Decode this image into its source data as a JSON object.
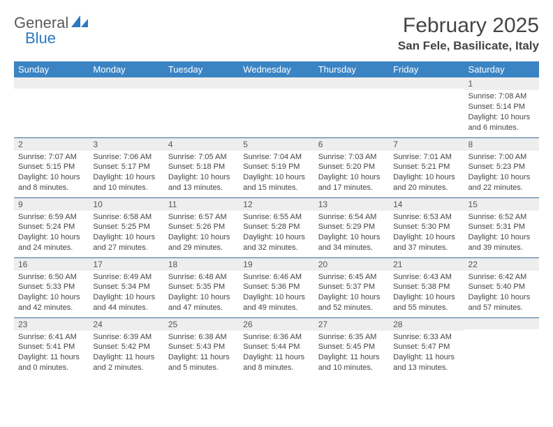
{
  "logo": {
    "text1": "General",
    "text2": "Blue"
  },
  "title": "February 2025",
  "location": "San Fele, Basilicate, Italy",
  "colors": {
    "header_bg": "#3b84c4",
    "header_text": "#ffffff",
    "daynum_bg": "#eeeeee",
    "row_border": "#3b6a9a",
    "logo_blue": "#2b79c2",
    "body_text": "#4a4a4a"
  },
  "fonts": {
    "title_size": 30,
    "location_size": 17,
    "weekday_size": 13,
    "daynum_size": 12,
    "body_size": 11
  },
  "weekdays": [
    "Sunday",
    "Monday",
    "Tuesday",
    "Wednesday",
    "Thursday",
    "Friday",
    "Saturday"
  ],
  "weeks": [
    [
      {
        "num": "",
        "sunrise": "",
        "sunset": "",
        "daylight": ""
      },
      {
        "num": "",
        "sunrise": "",
        "sunset": "",
        "daylight": ""
      },
      {
        "num": "",
        "sunrise": "",
        "sunset": "",
        "daylight": ""
      },
      {
        "num": "",
        "sunrise": "",
        "sunset": "",
        "daylight": ""
      },
      {
        "num": "",
        "sunrise": "",
        "sunset": "",
        "daylight": ""
      },
      {
        "num": "",
        "sunrise": "",
        "sunset": "",
        "daylight": ""
      },
      {
        "num": "1",
        "sunrise": "Sunrise: 7:08 AM",
        "sunset": "Sunset: 5:14 PM",
        "daylight": "Daylight: 10 hours and 6 minutes."
      }
    ],
    [
      {
        "num": "2",
        "sunrise": "Sunrise: 7:07 AM",
        "sunset": "Sunset: 5:15 PM",
        "daylight": "Daylight: 10 hours and 8 minutes."
      },
      {
        "num": "3",
        "sunrise": "Sunrise: 7:06 AM",
        "sunset": "Sunset: 5:17 PM",
        "daylight": "Daylight: 10 hours and 10 minutes."
      },
      {
        "num": "4",
        "sunrise": "Sunrise: 7:05 AM",
        "sunset": "Sunset: 5:18 PM",
        "daylight": "Daylight: 10 hours and 13 minutes."
      },
      {
        "num": "5",
        "sunrise": "Sunrise: 7:04 AM",
        "sunset": "Sunset: 5:19 PM",
        "daylight": "Daylight: 10 hours and 15 minutes."
      },
      {
        "num": "6",
        "sunrise": "Sunrise: 7:03 AM",
        "sunset": "Sunset: 5:20 PM",
        "daylight": "Daylight: 10 hours and 17 minutes."
      },
      {
        "num": "7",
        "sunrise": "Sunrise: 7:01 AM",
        "sunset": "Sunset: 5:21 PM",
        "daylight": "Daylight: 10 hours and 20 minutes."
      },
      {
        "num": "8",
        "sunrise": "Sunrise: 7:00 AM",
        "sunset": "Sunset: 5:23 PM",
        "daylight": "Daylight: 10 hours and 22 minutes."
      }
    ],
    [
      {
        "num": "9",
        "sunrise": "Sunrise: 6:59 AM",
        "sunset": "Sunset: 5:24 PM",
        "daylight": "Daylight: 10 hours and 24 minutes."
      },
      {
        "num": "10",
        "sunrise": "Sunrise: 6:58 AM",
        "sunset": "Sunset: 5:25 PM",
        "daylight": "Daylight: 10 hours and 27 minutes."
      },
      {
        "num": "11",
        "sunrise": "Sunrise: 6:57 AM",
        "sunset": "Sunset: 5:26 PM",
        "daylight": "Daylight: 10 hours and 29 minutes."
      },
      {
        "num": "12",
        "sunrise": "Sunrise: 6:55 AM",
        "sunset": "Sunset: 5:28 PM",
        "daylight": "Daylight: 10 hours and 32 minutes."
      },
      {
        "num": "13",
        "sunrise": "Sunrise: 6:54 AM",
        "sunset": "Sunset: 5:29 PM",
        "daylight": "Daylight: 10 hours and 34 minutes."
      },
      {
        "num": "14",
        "sunrise": "Sunrise: 6:53 AM",
        "sunset": "Sunset: 5:30 PM",
        "daylight": "Daylight: 10 hours and 37 minutes."
      },
      {
        "num": "15",
        "sunrise": "Sunrise: 6:52 AM",
        "sunset": "Sunset: 5:31 PM",
        "daylight": "Daylight: 10 hours and 39 minutes."
      }
    ],
    [
      {
        "num": "16",
        "sunrise": "Sunrise: 6:50 AM",
        "sunset": "Sunset: 5:33 PM",
        "daylight": "Daylight: 10 hours and 42 minutes."
      },
      {
        "num": "17",
        "sunrise": "Sunrise: 6:49 AM",
        "sunset": "Sunset: 5:34 PM",
        "daylight": "Daylight: 10 hours and 44 minutes."
      },
      {
        "num": "18",
        "sunrise": "Sunrise: 6:48 AM",
        "sunset": "Sunset: 5:35 PM",
        "daylight": "Daylight: 10 hours and 47 minutes."
      },
      {
        "num": "19",
        "sunrise": "Sunrise: 6:46 AM",
        "sunset": "Sunset: 5:36 PM",
        "daylight": "Daylight: 10 hours and 49 minutes."
      },
      {
        "num": "20",
        "sunrise": "Sunrise: 6:45 AM",
        "sunset": "Sunset: 5:37 PM",
        "daylight": "Daylight: 10 hours and 52 minutes."
      },
      {
        "num": "21",
        "sunrise": "Sunrise: 6:43 AM",
        "sunset": "Sunset: 5:38 PM",
        "daylight": "Daylight: 10 hours and 55 minutes."
      },
      {
        "num": "22",
        "sunrise": "Sunrise: 6:42 AM",
        "sunset": "Sunset: 5:40 PM",
        "daylight": "Daylight: 10 hours and 57 minutes."
      }
    ],
    [
      {
        "num": "23",
        "sunrise": "Sunrise: 6:41 AM",
        "sunset": "Sunset: 5:41 PM",
        "daylight": "Daylight: 11 hours and 0 minutes."
      },
      {
        "num": "24",
        "sunrise": "Sunrise: 6:39 AM",
        "sunset": "Sunset: 5:42 PM",
        "daylight": "Daylight: 11 hours and 2 minutes."
      },
      {
        "num": "25",
        "sunrise": "Sunrise: 6:38 AM",
        "sunset": "Sunset: 5:43 PM",
        "daylight": "Daylight: 11 hours and 5 minutes."
      },
      {
        "num": "26",
        "sunrise": "Sunrise: 6:36 AM",
        "sunset": "Sunset: 5:44 PM",
        "daylight": "Daylight: 11 hours and 8 minutes."
      },
      {
        "num": "27",
        "sunrise": "Sunrise: 6:35 AM",
        "sunset": "Sunset: 5:45 PM",
        "daylight": "Daylight: 11 hours and 10 minutes."
      },
      {
        "num": "28",
        "sunrise": "Sunrise: 6:33 AM",
        "sunset": "Sunset: 5:47 PM",
        "daylight": "Daylight: 11 hours and 13 minutes."
      },
      {
        "num": "",
        "sunrise": "",
        "sunset": "",
        "daylight": ""
      }
    ]
  ]
}
